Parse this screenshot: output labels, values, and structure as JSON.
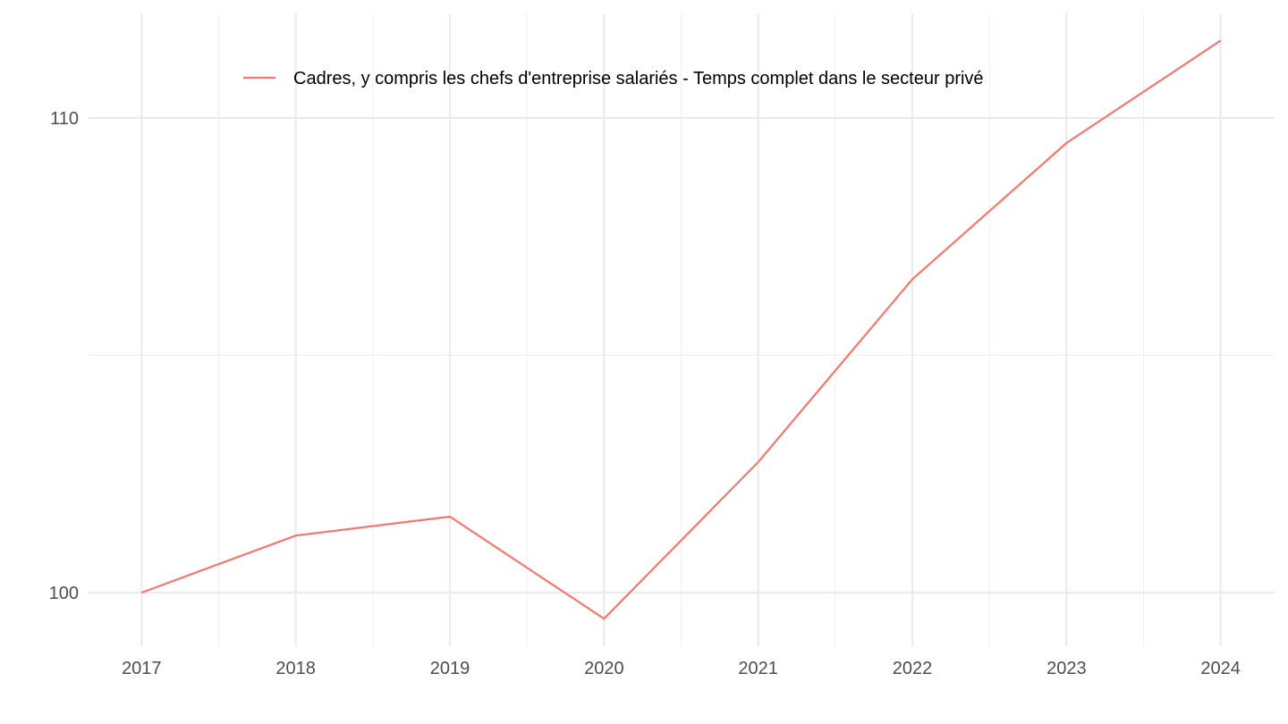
{
  "chart_data": {
    "type": "line",
    "x": [
      2017,
      2018,
      2019,
      2020,
      2021,
      2022,
      2023,
      2024
    ],
    "x_tick_labels": [
      "2017",
      "2018",
      "2019",
      "2020",
      "2021",
      "2022",
      "2023",
      "2024"
    ],
    "y_tick_labels": [
      "100",
      "110"
    ],
    "y_ticks": [
      100,
      110
    ],
    "ylim": [
      98.87,
      112.2
    ],
    "xlim": [
      2016.65,
      2024.35
    ],
    "grid": true,
    "legend_position": "top",
    "series": [
      {
        "name": "Cadres, y compris les chefs d'entreprise salariés - Temps complet dans le secteur privé",
        "color": "#F8766D",
        "values": [
          100.0,
          101.2,
          101.6,
          99.45,
          102.75,
          106.6,
          109.47,
          111.63
        ]
      }
    ]
  }
}
